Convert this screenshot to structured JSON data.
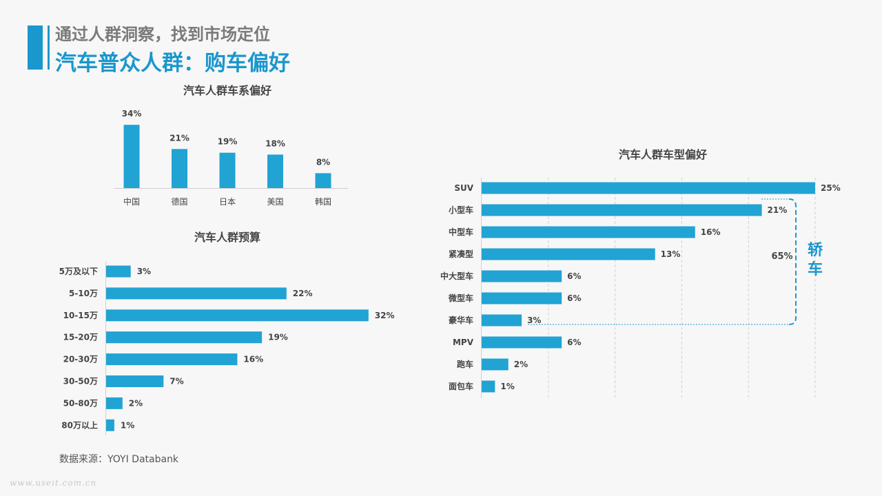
{
  "header": {
    "line1": "通过人群洞察，找到市场定位",
    "line2": "汽车普众人群：购车偏好"
  },
  "colors": {
    "accent": "#1a97cd",
    "bar": "#21a3d3",
    "text": "#444444"
  },
  "source": "数据来源：YOYI  Databank",
  "watermark": "www.useit.com.cn",
  "chart_data": [
    {
      "type": "bar",
      "title": "汽车人群车系偏好",
      "categories": [
        "中国",
        "德国",
        "日本",
        "美国",
        "韩国"
      ],
      "values": [
        34,
        21,
        19,
        18,
        8
      ],
      "labels": [
        "34%",
        "21%",
        "19%",
        "18%",
        "8%"
      ],
      "unit": "%"
    },
    {
      "type": "bar",
      "orientation": "horizontal",
      "title": "汽车人群预算",
      "categories": [
        "5万及以下",
        "5-10万",
        "10-15万",
        "15-20万",
        "20-30万",
        "30-50万",
        "50-80万",
        "80万以上"
      ],
      "values": [
        3,
        22,
        32,
        19,
        16,
        7,
        2,
        1
      ],
      "labels": [
        "3%",
        "22%",
        "32%",
        "19%",
        "16%",
        "7%",
        "2%",
        "1%"
      ],
      "unit": "%"
    },
    {
      "type": "bar",
      "orientation": "horizontal",
      "title": "汽车人群车型偏好",
      "categories": [
        "SUV",
        "小型车",
        "中型车",
        "紧凑型",
        "中大型车",
        "微型车",
        "豪华车",
        "MPV",
        "跑车",
        "面包车"
      ],
      "values": [
        25,
        21,
        16,
        13,
        6,
        6,
        3,
        6,
        2,
        1
      ],
      "labels": [
        "25%",
        "21%",
        "16%",
        "13%",
        "6%",
        "6%",
        "3%",
        "6%",
        "2%",
        "1%"
      ],
      "unit": "%",
      "xlim": [
        0,
        25
      ],
      "grid": true,
      "annotation": {
        "value": "65%",
        "label": "轿车",
        "group": [
          "小型车",
          "中型车",
          "紧凑型",
          "中大型车",
          "微型车",
          "豪华车"
        ]
      }
    }
  ]
}
